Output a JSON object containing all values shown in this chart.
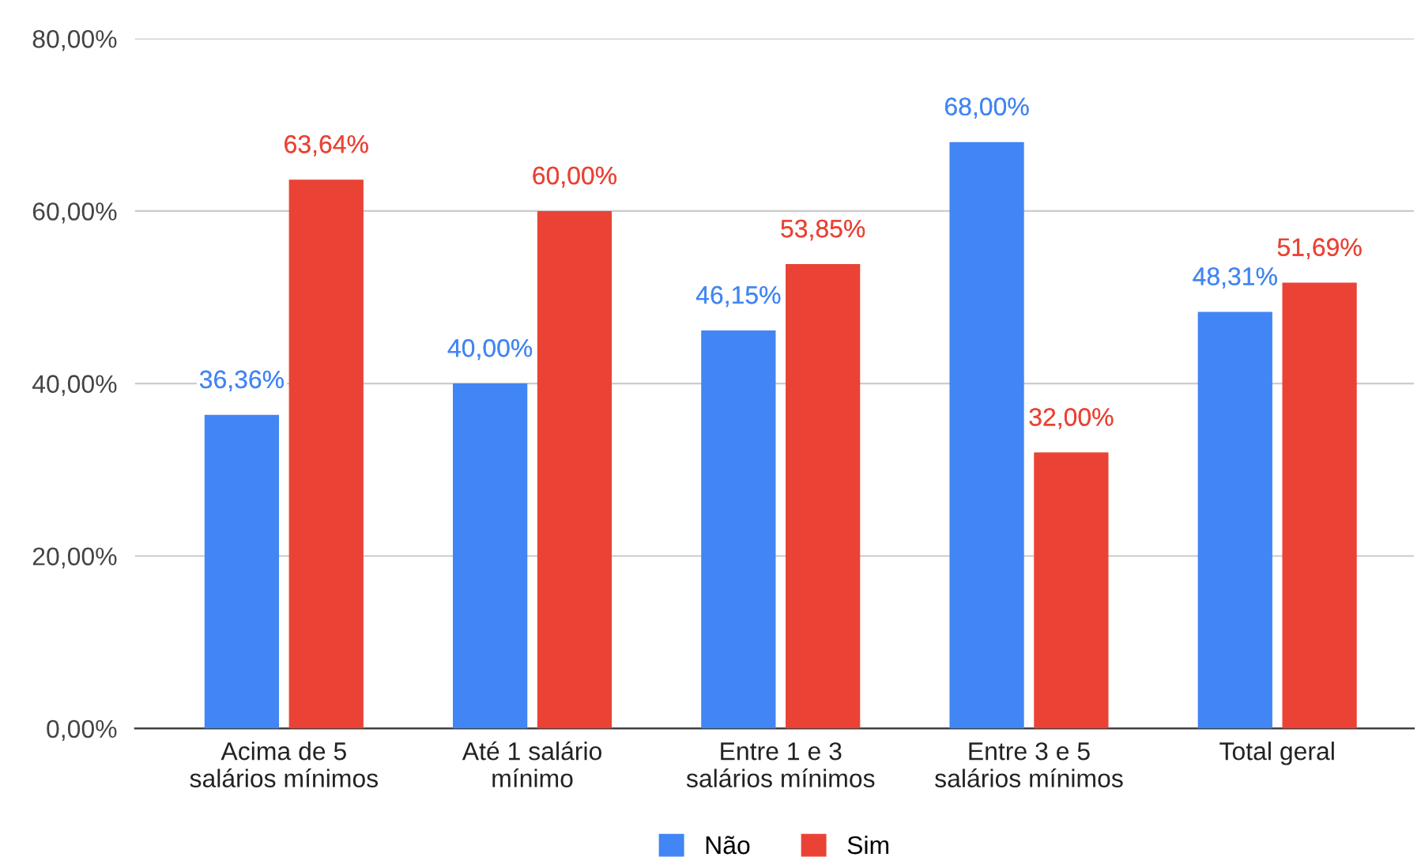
{
  "chart_data": {
    "type": "bar",
    "categories": [
      "Acima de 5\nsalários mínimos",
      "Até 1 salário\nmínimo",
      "Entre 1 e 3\nsalários mínimos",
      "Entre 3 e 5\nsalários mínimos",
      "Total geral"
    ],
    "series": [
      {
        "name": "Não",
        "color": "#4285f4",
        "values": [
          36.36,
          40.0,
          46.15,
          68.0,
          48.31
        ],
        "value_labels": [
          "36,36%",
          "40,00%",
          "46,15%",
          "68,00%",
          "48,31%"
        ]
      },
      {
        "name": "Sim",
        "color": "#ea4335",
        "values": [
          63.64,
          60.0,
          53.85,
          32.0,
          51.69
        ],
        "value_labels": [
          "63,64%",
          "60,00%",
          "53,85%",
          "32,00%",
          "51,69%"
        ]
      }
    ],
    "ylim": [
      0,
      80
    ],
    "yticks": [
      {
        "value": 0,
        "label": "0,00%"
      },
      {
        "value": 20,
        "label": "20,00%"
      },
      {
        "value": 40,
        "label": "40,00%"
      },
      {
        "value": 60,
        "label": "60,00%"
      },
      {
        "value": 80,
        "label": "80,00%"
      }
    ],
    "grid": "y",
    "legend": "bottom"
  }
}
